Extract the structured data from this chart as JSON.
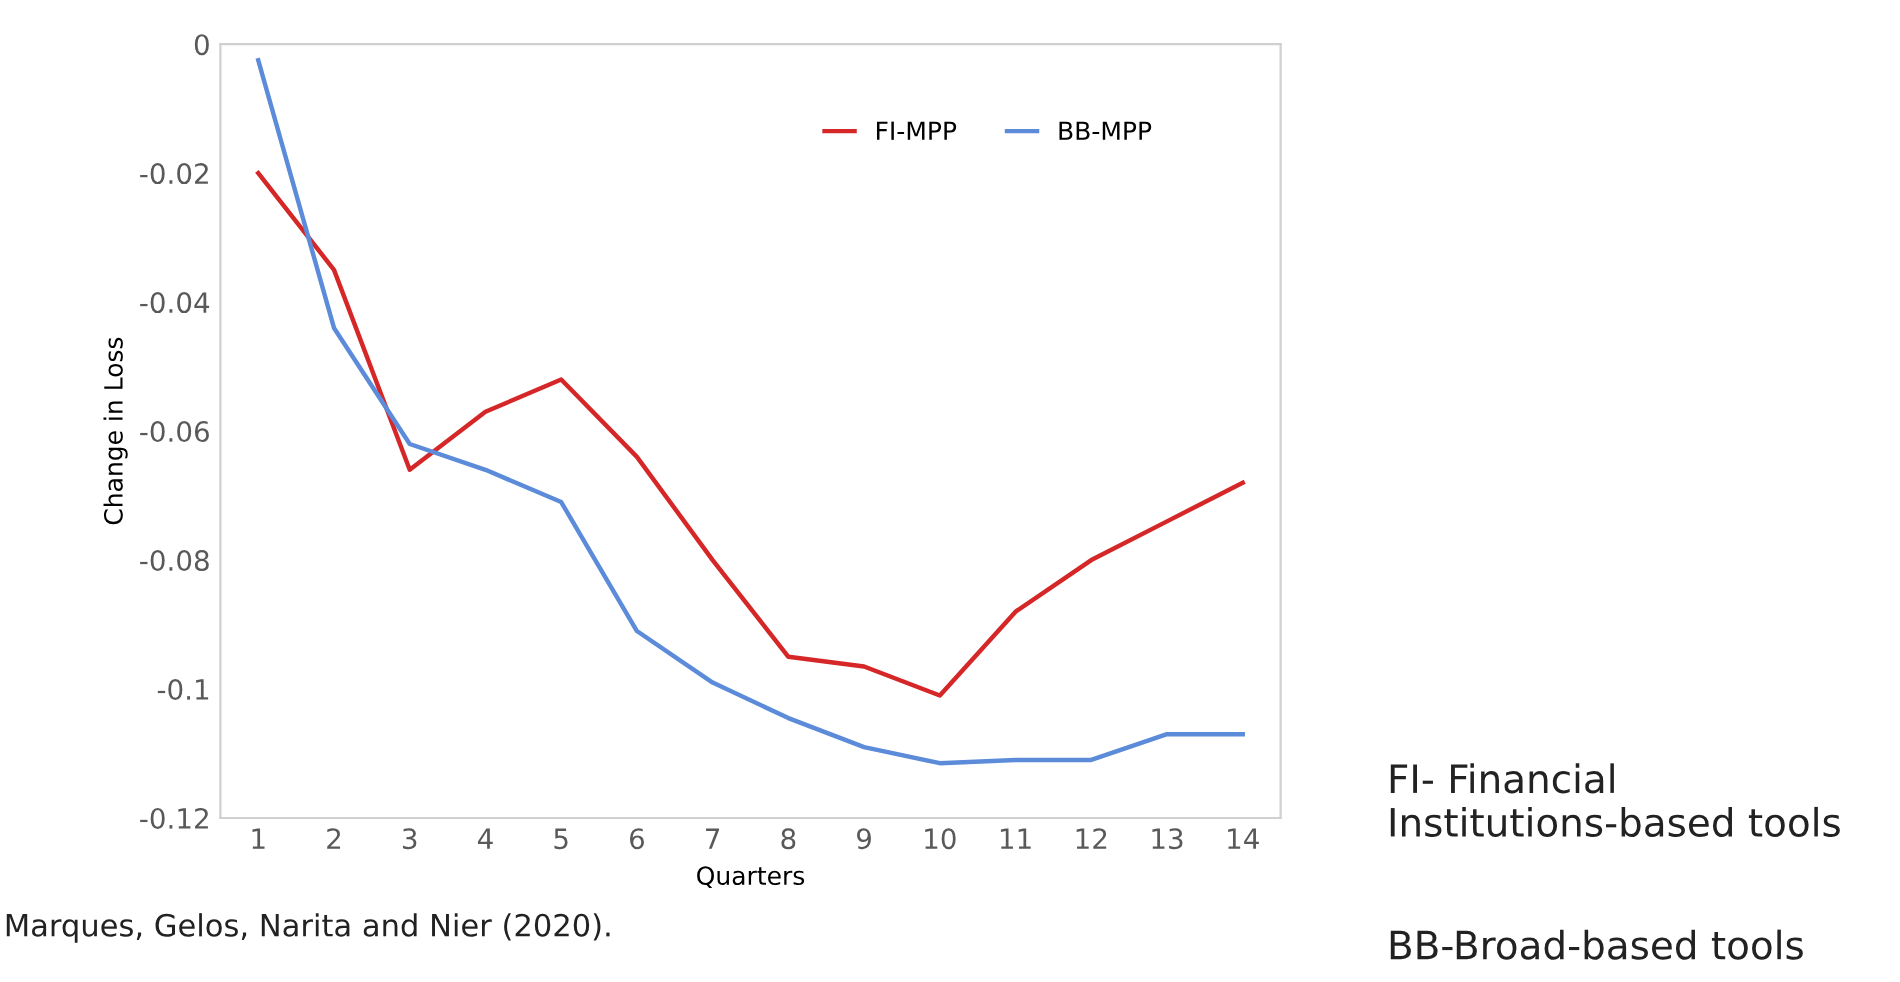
{
  "chart_data": {
    "type": "line",
    "ylabel": "Change in Loss",
    "xlabel": "Quarters",
    "categories": [
      "1",
      "2",
      "3",
      "4",
      "5",
      "6",
      "7",
      "8",
      "9",
      "10",
      "11",
      "12",
      "13",
      "14"
    ],
    "series": [
      {
        "name": "FI-MPP",
        "color": "#d62728",
        "values": [
          -0.02,
          -0.035,
          -0.066,
          -0.057,
          -0.052,
          -0.064,
          -0.08,
          -0.095,
          -0.0965,
          -0.101,
          -0.088,
          -0.08,
          -0.074,
          -0.068
        ]
      },
      {
        "name": "BB-MPP",
        "color": "#5b8bd9",
        "values": [
          -0.0025,
          -0.044,
          -0.062,
          -0.066,
          -0.071,
          -0.091,
          -0.099,
          -0.1045,
          -0.109,
          -0.1115,
          -0.111,
          -0.111,
          -0.107,
          -0.107
        ]
      }
    ],
    "ylim": [
      -0.12,
      0
    ],
    "yticks": [
      -0.12,
      -0.1,
      -0.08,
      -0.06,
      -0.04,
      -0.02,
      0
    ],
    "grid": false,
    "legend": "top right",
    "marker": "none",
    "line_style": "solid",
    "annotations": [
      "Marques, Gelos, Narita and Nier (2020).",
      "FI- Financial\nInstitutions-based tools",
      "BB-Broad-based tools"
    ]
  }
}
